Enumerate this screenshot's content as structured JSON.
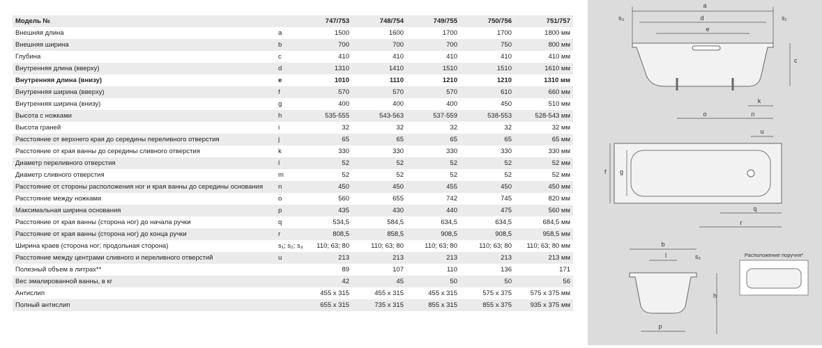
{
  "table": {
    "header": {
      "label": "Модель №",
      "models": [
        "747/753",
        "748/754",
        "749/755",
        "750/756",
        "751/757"
      ]
    },
    "rows": [
      {
        "label": "Внешняя длина",
        "sym": "a",
        "values": [
          "1500",
          "1600",
          "1700",
          "1700",
          "1800 мм"
        ]
      },
      {
        "label": "Внешняя ширина",
        "sym": "b",
        "values": [
          "700",
          "700",
          "700",
          "750",
          "800 мм"
        ]
      },
      {
        "label": "Глубина",
        "sym": "c",
        "values": [
          "410",
          "410",
          "410",
          "410",
          "410 мм"
        ]
      },
      {
        "label": "Внутренняя длина (вверху)",
        "sym": "d",
        "values": [
          "1310",
          "1410",
          "1510",
          "1510",
          "1610 мм"
        ]
      },
      {
        "label": "Внутренняя длина (внизу)",
        "sym": "e",
        "values": [
          "1010",
          "1110",
          "1210",
          "1210",
          "1310 мм"
        ],
        "bold": true
      },
      {
        "label": "Внутренняя ширина (вверху)",
        "sym": "f",
        "values": [
          "570",
          "570",
          "570",
          "610",
          "660 мм"
        ]
      },
      {
        "label": "Внутренняя ширина (внизу)",
        "sym": "g",
        "values": [
          "400",
          "400",
          "400",
          "450",
          "510 мм"
        ]
      },
      {
        "label": "Высота с ножками",
        "sym": "h",
        "values": [
          "535-555",
          "543-563",
          "537-559",
          "538-553",
          "528-543 мм"
        ]
      },
      {
        "label": "Высота граней",
        "sym": "i",
        "values": [
          "32",
          "32",
          "32",
          "32",
          "32 мм"
        ]
      },
      {
        "label": "Расстояние от верхнего края до середины переливного отверстия",
        "sym": "j",
        "values": [
          "65",
          "65",
          "65",
          "65",
          "65 мм"
        ]
      },
      {
        "label": "Расстояние от края ванны до середины сливного отверстия",
        "sym": "k",
        "values": [
          "330",
          "330",
          "330",
          "330",
          "330 мм"
        ]
      },
      {
        "label": "Диаметр переливного отверстия",
        "sym": "l",
        "values": [
          "52",
          "52",
          "52",
          "52",
          "52 мм"
        ]
      },
      {
        "label": "Диаметр сливного отверстия",
        "sym": "m",
        "values": [
          "52",
          "52",
          "52",
          "52",
          "52 мм"
        ]
      },
      {
        "label": "Расстояние от стороны расположения ног и края ванны до середины основания",
        "sym": "n",
        "values": [
          "450",
          "450",
          "455",
          "450",
          "450 мм"
        ]
      },
      {
        "label": "Расстояние между ножками",
        "sym": "o",
        "values": [
          "560",
          "655",
          "742",
          "745",
          "820 мм"
        ]
      },
      {
        "label": "Максимальная ширина основания",
        "sym": "p",
        "values": [
          "435",
          "430",
          "440",
          "475",
          "560 мм"
        ]
      },
      {
        "label": "Расстояние от края ванны (сторона ног) до начала ручки",
        "sym": "q",
        "values": [
          "534,5",
          "584,5",
          "634,5",
          "634,5",
          "684,5 мм"
        ]
      },
      {
        "label": "Расстояние от края ванны (сторона ног) до конца ручки",
        "sym": "r",
        "values": [
          "808,5",
          "858,5",
          "908,5",
          "908,5",
          "958,5 мм"
        ]
      },
      {
        "label": "Ширина краев (сторона ног; продольная сторона)",
        "sym": "s₁; s₂; s₃",
        "values": [
          "110; 63; 80",
          "110; 63; 80",
          "110; 63; 80",
          "110; 63; 80",
          "110; 63; 80 мм"
        ]
      },
      {
        "label": "Расстояние между центрами сливного и переливного отверстий",
        "sym": "u",
        "values": [
          "213",
          "213",
          "213",
          "213",
          "213 мм"
        ]
      },
      {
        "label": "Полезный объем в литрах**",
        "values": [
          "89",
          "107",
          "110",
          "136",
          "171"
        ]
      },
      {
        "label": "Вес эмалированной ванны, в кг",
        "values": [
          "42",
          "45",
          "50",
          "50",
          "56"
        ]
      },
      {
        "label": "Антислип",
        "values": [
          "455 x 315",
          "455 x 315",
          "455 x 315",
          "575 x 375",
          "575 x 375 мм"
        ]
      },
      {
        "label": "Полный антислип",
        "values": [
          "655 x 315",
          "735 x 315",
          "855 x 315",
          "855 x 375",
          "935 x 375 мм"
        ]
      }
    ]
  },
  "drawing": {
    "labels": {
      "a": "a",
      "s3": "s₃",
      "d": "d",
      "s1": "s₁",
      "e": "e",
      "c": "c",
      "k": "k",
      "o": "o",
      "n": "n",
      "u": "u",
      "f": "f",
      "g": "g",
      "q": "q",
      "r": "r",
      "b": "b",
      "l": "l",
      "s2": "s₂",
      "h": "h",
      "p": "p",
      "handle": "Расположение поручня*"
    }
  }
}
